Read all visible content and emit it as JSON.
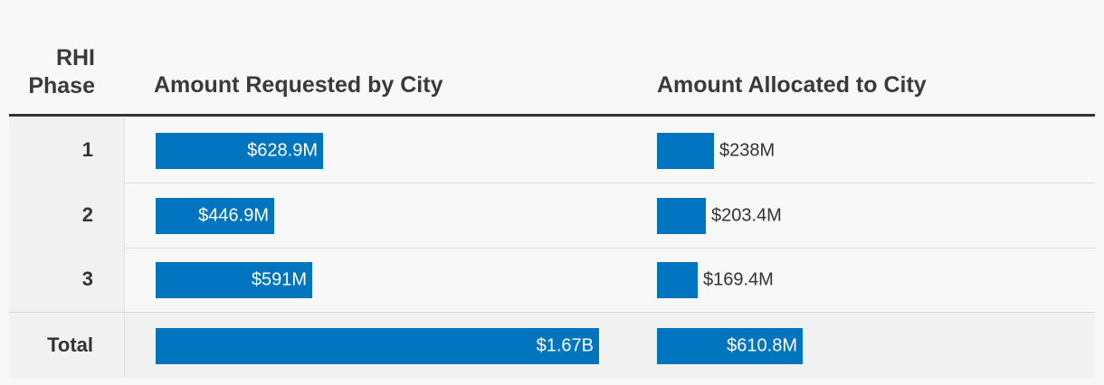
{
  "chart_data": {
    "type": "table",
    "columns": [
      "RHI Phase",
      "Amount Requested by City",
      "Amount Allocated to City"
    ],
    "header_phase_lines": [
      "RHI",
      "Phase"
    ],
    "rows": [
      {
        "phase": "1",
        "requested": 628.9,
        "requested_label": "$628.9M",
        "allocated": 238,
        "allocated_label": "$238M"
      },
      {
        "phase": "2",
        "requested": 446.9,
        "requested_label": "$446.9M",
        "allocated": 203.4,
        "allocated_label": "$203.4M"
      },
      {
        "phase": "3",
        "requested": 591,
        "requested_label": "$591M",
        "allocated": 169.4,
        "allocated_label": "$169.4M"
      },
      {
        "phase": "Total",
        "requested": 1670,
        "requested_label": "$1.67B",
        "allocated": 610.8,
        "allocated_label": "$610.8M"
      }
    ],
    "units": "$M",
    "bar_color": "#0074be"
  }
}
